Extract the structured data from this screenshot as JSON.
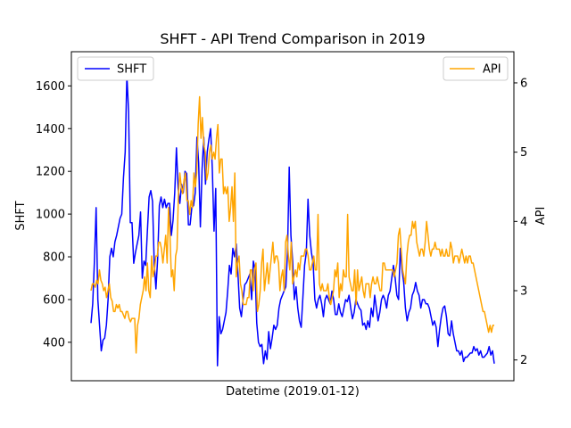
{
  "chart_data": {
    "type": "line",
    "title": "SHFT - API Trend Comparison in 2019",
    "xlabel": "Datetime (2019.01-12)",
    "x_ticks_shown": false,
    "grid": false,
    "left_axis": {
      "label": "SHFT",
      "lim": [
        220,
        1760
      ],
      "ticks": [
        400,
        600,
        800,
        1000,
        1200,
        1400,
        1600
      ],
      "tick_labels": [
        "400",
        "600",
        "800",
        "1000",
        "1200",
        "1400",
        "1600"
      ]
    },
    "right_axis": {
      "label": "API",
      "lim": [
        1.7,
        6.45
      ],
      "ticks": [
        2,
        3,
        4,
        5,
        6
      ],
      "tick_labels": [
        "2",
        "3",
        "4",
        "5",
        "6"
      ]
    },
    "legends": [
      {
        "series": "SHFT",
        "placement": "upper-left"
      },
      {
        "series": "API",
        "placement": "upper-right"
      }
    ],
    "series": [
      {
        "name": "SHFT",
        "axis": "left",
        "color": "#0000ff",
        "values": [
          490,
          580,
          780,
          1030,
          600,
          480,
          360,
          410,
          420,
          480,
          600,
          800,
          840,
          800,
          870,
          900,
          940,
          980,
          1000,
          1170,
          1290,
          1650,
          1480,
          960,
          960,
          770,
          820,
          860,
          900,
          1010,
          700,
          780,
          760,
          920,
          1080,
          1110,
          1060,
          770,
          650,
          790,
          1040,
          1080,
          1030,
          1070,
          1030,
          1050,
          1050,
          900,
          970,
          1100,
          1310,
          1120,
          1050,
          1140,
          1100,
          1200,
          1190,
          950,
          950,
          1030,
          1040,
          1100,
          1360,
          1240,
          940,
          1210,
          1360,
          1140,
          1290,
          1350,
          1400,
          1210,
          920,
          1120,
          290,
          520,
          440,
          460,
          500,
          540,
          640,
          760,
          720,
          840,
          800,
          860,
          720,
          560,
          520,
          600,
          670,
          680,
          700,
          720,
          600,
          780,
          740,
          490,
          400,
          380,
          390,
          300,
          360,
          320,
          450,
          370,
          420,
          480,
          460,
          480,
          560,
          600,
          620,
          640,
          660,
          820,
          1220,
          900,
          780,
          600,
          660,
          560,
          500,
          470,
          610,
          760,
          820,
          1070,
          900,
          820,
          770,
          600,
          560,
          600,
          620,
          580,
          520,
          600,
          620,
          600,
          580,
          640,
          600,
          530,
          530,
          580,
          540,
          520,
          560,
          600,
          590,
          620,
          560,
          510,
          540,
          600,
          580,
          560,
          550,
          480,
          490,
          460,
          500,
          470,
          560,
          520,
          620,
          560,
          500,
          540,
          600,
          620,
          600,
          560,
          620,
          640,
          700,
          760,
          700,
          620,
          600,
          840,
          740,
          680,
          560,
          500,
          540,
          560,
          620,
          640,
          680,
          640,
          620,
          560,
          600,
          600,
          580,
          580,
          560,
          520,
          480,
          500,
          470,
          380,
          460,
          520,
          560,
          570,
          520,
          440,
          430,
          500,
          440,
          400,
          360,
          360,
          340,
          360,
          310,
          330,
          330,
          340,
          350,
          350,
          380,
          360,
          370,
          340,
          360,
          330,
          330,
          340,
          350,
          380,
          340,
          360,
          300
        ]
      },
      {
        "name": "API",
        "axis": "right",
        "color": "#ffa500",
        "values": [
          3.0,
          3.1,
          3.1,
          3.05,
          3.15,
          3.1,
          3.3,
          3.15,
          3.1,
          3.0,
          3.05,
          2.9,
          3.0,
          3.1,
          2.9,
          2.85,
          2.7,
          2.7,
          2.8,
          2.75,
          2.8,
          2.7,
          2.7,
          2.65,
          2.6,
          2.7,
          2.7,
          2.6,
          2.55,
          2.6,
          2.6,
          2.6,
          2.1,
          2.5,
          2.6,
          2.8,
          2.9,
          3.0,
          3.2,
          3.0,
          3.4,
          3.0,
          2.9,
          3.5,
          3.2,
          3.3,
          3.5,
          3.5,
          3.7,
          3.7,
          3.6,
          3.4,
          3.6,
          3.8,
          3.4,
          4.2,
          3.8,
          3.2,
          3.3,
          3.0,
          3.5,
          3.6,
          4.4,
          4.7,
          4.5,
          4.4,
          4.6,
          4.7,
          4.3,
          4.3,
          4.1,
          4.3,
          4.2,
          4.7,
          4.5,
          4.7,
          5.4,
          5.8,
          5.2,
          5.5,
          5.1,
          5.0,
          4.6,
          4.7,
          5.0,
          5.1,
          4.9,
          5.0,
          4.9,
          5.2,
          5.4,
          4.7,
          4.9,
          4.9,
          4.4,
          4.5,
          4.4,
          4.5,
          4.0,
          4.2,
          4.5,
          4.0,
          4.7,
          3.2,
          3.4,
          3.5,
          3.1,
          3.0,
          2.8,
          2.8,
          2.8,
          2.9,
          2.9,
          3.3,
          3.3,
          3.0,
          3.3,
          3.4,
          2.7,
          2.8,
          3.0,
          3.4,
          3.6,
          3.0,
          3.2,
          3.4,
          3.1,
          3.3,
          3.5,
          3.7,
          3.4,
          3.5,
          3.5,
          3.4,
          3.0,
          3.2,
          3.3,
          3.0,
          3.7,
          3.8,
          3.5,
          3.3,
          3.7,
          3.1,
          3.2,
          3.3,
          3.2,
          3.4,
          3.3,
          3.5,
          3.5,
          3.5,
          3.6,
          3.6,
          3.5,
          3.3,
          3.3,
          3.4,
          3.5,
          3.3,
          3.3,
          4.1,
          3.1,
          3.0,
          3.1,
          3.0,
          3.0,
          3.0,
          3.1,
          2.9,
          2.8,
          2.9,
          3.0,
          3.3,
          3.2,
          3.4,
          2.9,
          3.1,
          3.0,
          3.3,
          3.2,
          3.2,
          4.1,
          3.2,
          3.1,
          3.0,
          3.0,
          3.3,
          2.8,
          3.3,
          3.0,
          3.1,
          3.2,
          3.0,
          2.9,
          3.1,
          3.1,
          3.1,
          2.9,
          3.1,
          3.2,
          3.1,
          3.1,
          3.2,
          3.1,
          3.0,
          3.0,
          3.4,
          3.4,
          3.3,
          3.3,
          3.3,
          3.3,
          3.3,
          3.3,
          3.2,
          3.3,
          3.4,
          3.8,
          3.9,
          3.6,
          3.3,
          3.2,
          3.1,
          3.5,
          3.7,
          3.8,
          3.8,
          4.0,
          3.9,
          4.0,
          3.7,
          3.6,
          3.5,
          3.6,
          3.6,
          3.5,
          3.7,
          4.0,
          3.8,
          3.6,
          3.5,
          3.6,
          3.6,
          3.7,
          3.6,
          3.6,
          3.6,
          3.5,
          3.6,
          3.5,
          3.5,
          3.6,
          3.5,
          3.5,
          3.7,
          3.6,
          3.4,
          3.5,
          3.5,
          3.5,
          3.4,
          3.5,
          3.6,
          3.5,
          3.4,
          3.5,
          3.4,
          3.5,
          3.5,
          3.4,
          3.4,
          3.3,
          3.2,
          3.1,
          3.0,
          2.9,
          2.8,
          2.7,
          2.7,
          2.6,
          2.5,
          2.4,
          2.5,
          2.4,
          2.5,
          2.5
        ]
      }
    ]
  }
}
